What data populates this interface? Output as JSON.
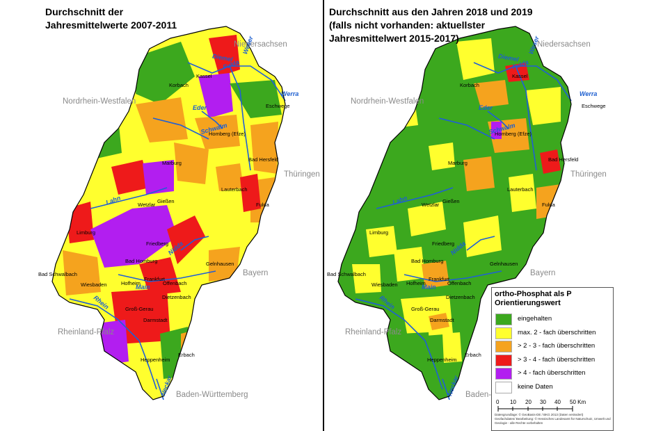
{
  "left_panel": {
    "title_line1": "Durchschnitt der",
    "title_line2": "Jahresmittelwerte 2007-2011"
  },
  "right_panel": {
    "title_line1": "Durchschnitt aus den Jahren 2018 und 2019",
    "title_line2": "(falls nicht vorhanden: aktuellster",
    "title_line3": "Jahresmittelwert 2015-2017)"
  },
  "regions": {
    "niedersachsen": "Niedersachsen",
    "nrw": "Nordrhein-Westfalen",
    "thueringen": "Thüringen",
    "bayern": "Bayern",
    "rlp": "Rheinland-Pfalz",
    "bw": "Baden-Württemberg"
  },
  "cities": {
    "kassel": "Kassel",
    "korbach": "Korbach",
    "eschwege": "Eschwege",
    "homberg": "Homberg (Efze)",
    "bad_hersfeld": "Bad Hersfeld",
    "marburg": "Marburg",
    "lauterbach": "Lauterbach",
    "giessen": "Gießen",
    "wetzlar": "Wetzlar",
    "fulda": "Fulda",
    "limburg": "Limburg",
    "friedberg": "Friedberg",
    "bad_homburg": "Bad Homburg",
    "gelnhausen": "Gelnhausen",
    "bad_schwalbach": "Bad Schwalbach",
    "wiesbaden": "Wiesbaden",
    "hofheim": "Hofheim",
    "frankfurt": "Frankfurt",
    "offenbach": "Offenbach",
    "dietzenbach": "Dietzenbach",
    "gross_gerau": "Groß-Gerau",
    "darmstadt": "Darmstadt",
    "heppenheim": "Heppenheim",
    "erbach": "Erbach"
  },
  "rivers": {
    "diemel": "Diemel",
    "weser": "Weser",
    "fulda": "Fulda",
    "werra": "Werra",
    "schwalm": "Schwalm",
    "eder": "Eder",
    "lahn": "Lahn",
    "nidda": "Nidda",
    "main": "Main",
    "rhein": "Rhein",
    "neckar": "Neckar"
  },
  "legend": {
    "title_line1": "ortho-Phosphat als P",
    "title_line2": "Orientierungswert",
    "items": [
      {
        "label": "eingehalten",
        "color": "#3ca81e"
      },
      {
        "label": "max. 2 - fach überschritten",
        "color": "#ffff2e"
      },
      {
        "label": "> 2 - 3 - fach überschritten",
        "color": "#f5a31e"
      },
      {
        "label": "> 3 - 4 - fach überschritten",
        "color": "#ee1a1a"
      },
      {
        "label": "> 4 - fach überschritten",
        "color": "#b21ef0"
      },
      {
        "label": "keine Daten",
        "color": "#ffffff"
      }
    ],
    "scale_ticks": [
      "0",
      "10",
      "20",
      "30",
      "40",
      "50 Km"
    ],
    "credit_label1": "Datengrundlage:",
    "credit_text1": "© GeoBasis-DE / BKG 2013 (Daten verändert)",
    "credit_label2": "Geofachdaten/ Bearbeitung:",
    "credit_text2": "© Hessisches Landesamt für Naturschutz, Umwelt und Geologie - alle Rechte vorbehalten"
  },
  "colors": {
    "water": "#1f5fd6",
    "boundary": "#000000"
  }
}
